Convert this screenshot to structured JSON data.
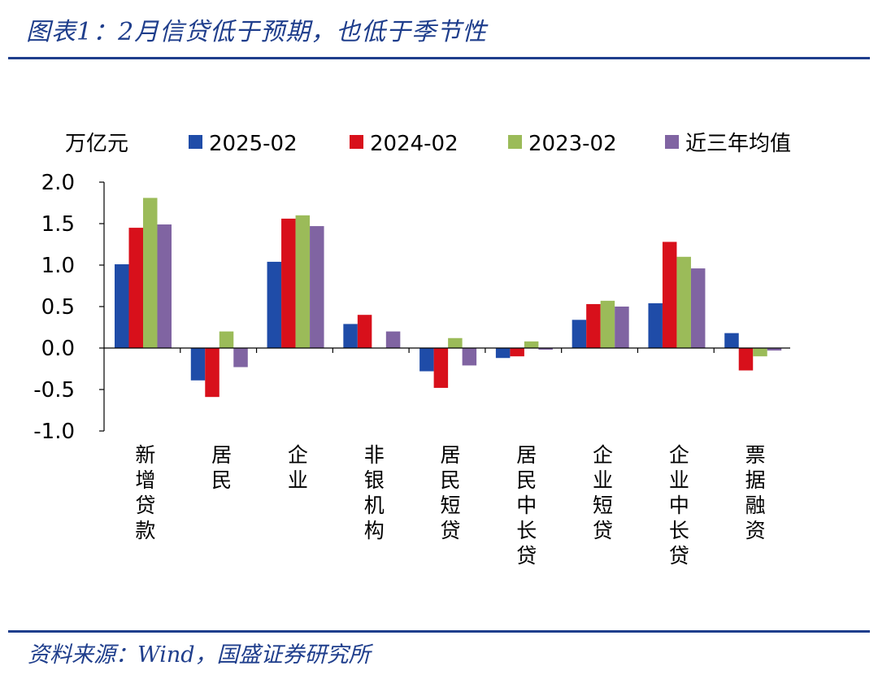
{
  "title": "图表1：2月信贷低于预期，也低于季节性",
  "source": "资料来源：Wind，国盛证券研究所",
  "colors": {
    "accent": "#1F3E8C",
    "series": [
      "#1F4CA8",
      "#D8101B",
      "#9BBB59",
      "#8064A2"
    ]
  },
  "chart_data": {
    "type": "bar",
    "ylabel": "万亿元",
    "ylim": [
      -1.0,
      2.0
    ],
    "yticks": [
      2.0,
      1.5,
      1.0,
      0.5,
      0.0,
      -0.5,
      -1.0
    ],
    "ytick_labels": [
      "2.0",
      "1.5",
      "1.0",
      "0.5",
      "0.0",
      "-0.5",
      "-1.0"
    ],
    "categories": [
      "新增贷款",
      "居民",
      "企业",
      "非银机构",
      "居民短贷",
      "居民中长贷",
      "企业短贷",
      "企业中长贷",
      "票据融资"
    ],
    "series": [
      {
        "name": "2025-02",
        "values": [
          1.01,
          -0.39,
          1.04,
          0.29,
          -0.28,
          -0.12,
          0.34,
          0.54,
          0.18
        ]
      },
      {
        "name": "2024-02",
        "values": [
          1.45,
          -0.59,
          1.56,
          0.4,
          -0.48,
          -0.1,
          0.53,
          1.28,
          -0.27
        ]
      },
      {
        "name": "2023-02",
        "values": [
          1.81,
          0.2,
          1.6,
          0.0,
          0.12,
          0.08,
          0.57,
          1.1,
          -0.1
        ]
      },
      {
        "name": "近三年均值",
        "values": [
          1.49,
          -0.23,
          1.47,
          0.2,
          -0.21,
          -0.02,
          0.5,
          0.96,
          -0.03
        ]
      }
    ],
    "legend_position": "top"
  }
}
